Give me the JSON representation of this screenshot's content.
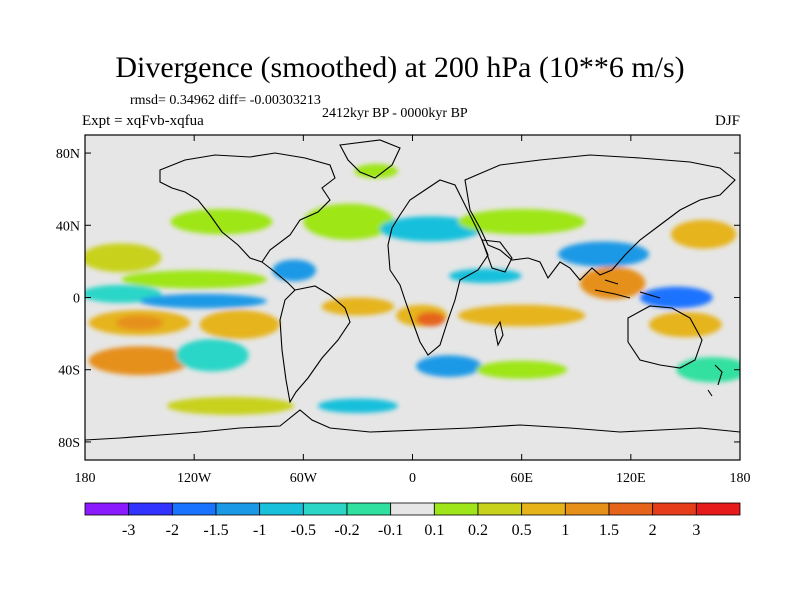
{
  "title": "Divergence (smoothed) at 200 hPa (10**6 m/s)",
  "stats_line": "rmsd= 0.34962 diff= -0.00303213",
  "time_period": "2412kyr BP - 0000kyr BP",
  "experiment": "Expt = xqFvb-xqfua",
  "season": "DJF",
  "map": {
    "projection": "cylindrical equidistant",
    "lon_range": [
      -180,
      180
    ],
    "lat_range": [
      -90,
      90
    ],
    "background_color": "#e6e6e6",
    "lat_ticks": [
      {
        "lat": 80,
        "label": "80N"
      },
      {
        "lat": 40,
        "label": "40N"
      },
      {
        "lat": 0,
        "label": "0"
      },
      {
        "lat": -40,
        "label": "40S"
      },
      {
        "lat": -80,
        "label": "80S"
      }
    ],
    "lon_ticks": [
      {
        "lon": -180,
        "label": "180"
      },
      {
        "lon": -120,
        "label": "120W"
      },
      {
        "lon": -60,
        "label": "60W"
      },
      {
        "lon": 0,
        "label": "0"
      },
      {
        "lon": 60,
        "label": "60E"
      },
      {
        "lon": 120,
        "label": "120E"
      },
      {
        "lon": 180,
        "label": "180"
      }
    ]
  },
  "colorbar": {
    "boxes": [
      "#8c1aff",
      "#3333ff",
      "#1a73ff",
      "#1a99e6",
      "#19c0dc",
      "#2bd6c7",
      "#30e0a0",
      "#e6e6e6",
      "#9ee619",
      "#c8d21a",
      "#e6b41a",
      "#e6901a",
      "#e6641a",
      "#e63c1a",
      "#e61a1a"
    ],
    "labels": [
      "-3",
      "-2",
      "-1.5",
      "-1",
      "-0.5",
      "-0.2",
      "-0.1",
      "0.1",
      "0.2",
      "0.5",
      "1",
      "1.5",
      "2",
      "3"
    ]
  },
  "field_patches": [
    {
      "lon": -105,
      "lat": 42,
      "rx": 28,
      "ry": 7,
      "color": "#9ee619"
    },
    {
      "lon": -160,
      "lat": 22,
      "rx": 22,
      "ry": 8,
      "color": "#c8d21a"
    },
    {
      "lon": -120,
      "lat": 10,
      "rx": 40,
      "ry": 5,
      "color": "#9ee619"
    },
    {
      "lon": -160,
      "lat": 2,
      "rx": 22,
      "ry": 5,
      "color": "#2bd6c7"
    },
    {
      "lon": -115,
      "lat": -2,
      "rx": 35,
      "ry": 4,
      "color": "#1a99e6"
    },
    {
      "lon": -150,
      "lat": -14,
      "rx": 28,
      "ry": 7,
      "color": "#e6b41a"
    },
    {
      "lon": -150,
      "lat": -14,
      "rx": 13,
      "ry": 4,
      "color": "#e6901a"
    },
    {
      "lon": -95,
      "lat": -15,
      "rx": 22,
      "ry": 8,
      "color": "#e6b41a"
    },
    {
      "lon": -150,
      "lat": -35,
      "rx": 28,
      "ry": 8,
      "color": "#e6901a"
    },
    {
      "lon": -110,
      "lat": -32,
      "rx": 20,
      "ry": 9,
      "color": "#2bd6c7"
    },
    {
      "lon": -100,
      "lat": -60,
      "rx": 35,
      "ry": 5,
      "color": "#c8d21a"
    },
    {
      "lon": -65,
      "lat": 15,
      "rx": 12,
      "ry": 6,
      "color": "#1a99e6"
    },
    {
      "lon": -35,
      "lat": 42,
      "rx": 25,
      "ry": 10,
      "color": "#9ee619"
    },
    {
      "lon": 10,
      "lat": 38,
      "rx": 28,
      "ry": 7,
      "color": "#19c0dc"
    },
    {
      "lon": 60,
      "lat": 42,
      "rx": 35,
      "ry": 7,
      "color": "#9ee619"
    },
    {
      "lon": 105,
      "lat": 24,
      "rx": 25,
      "ry": 7,
      "color": "#1a99e6"
    },
    {
      "lon": 160,
      "lat": 35,
      "rx": 18,
      "ry": 8,
      "color": "#e6b41a"
    },
    {
      "lon": -30,
      "lat": -5,
      "rx": 20,
      "ry": 5,
      "color": "#e6b41a"
    },
    {
      "lon": 5,
      "lat": -10,
      "rx": 14,
      "ry": 6,
      "color": "#e6b41a"
    },
    {
      "lon": 10,
      "lat": -12,
      "rx": 8,
      "ry": 4,
      "color": "#e6641a"
    },
    {
      "lon": 40,
      "lat": 12,
      "rx": 20,
      "ry": 4,
      "color": "#19c0dc"
    },
    {
      "lon": 60,
      "lat": -10,
      "rx": 35,
      "ry": 6,
      "color": "#e6b41a"
    },
    {
      "lon": 110,
      "lat": 8,
      "rx": 18,
      "ry": 9,
      "color": "#e6901a"
    },
    {
      "lon": 145,
      "lat": 0,
      "rx": 20,
      "ry": 6,
      "color": "#1a73ff"
    },
    {
      "lon": 150,
      "lat": -15,
      "rx": 20,
      "ry": 7,
      "color": "#e6b41a"
    },
    {
      "lon": 165,
      "lat": -40,
      "rx": 20,
      "ry": 7,
      "color": "#30e0a0"
    },
    {
      "lon": 20,
      "lat": -38,
      "rx": 18,
      "ry": 6,
      "color": "#1a99e6"
    },
    {
      "lon": 60,
      "lat": -40,
      "rx": 25,
      "ry": 5,
      "color": "#9ee619"
    },
    {
      "lon": -30,
      "lat": -60,
      "rx": 22,
      "ry": 4,
      "color": "#19c0dc"
    },
    {
      "lon": -20,
      "lat": 70,
      "rx": 12,
      "ry": 4,
      "color": "#9ee619"
    }
  ]
}
